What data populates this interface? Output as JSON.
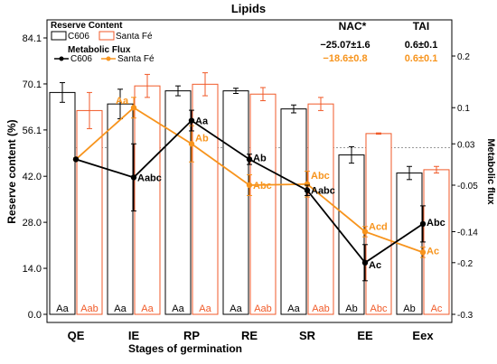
{
  "chart_data": {
    "type": "bar",
    "title": "Lipids",
    "xlabel": "Stages of germination",
    "ylabel": "Reserve content (%)",
    "y2label": "Metabolic flux",
    "categories": [
      "QE",
      "IE",
      "RP",
      "RE",
      "SR",
      "EE",
      "Eex"
    ],
    "ylim": [
      0,
      84.1
    ],
    "yticks": [
      "0.0",
      "14.0",
      "28.0",
      "42.0",
      "56.1",
      "70.1",
      "84.1"
    ],
    "y2lim": [
      -0.3,
      0.235
    ],
    "y2ticks": [
      "-0.3",
      "-0.2",
      "-0.14",
      "-0.05",
      "0.03",
      "0.1",
      "0.2"
    ],
    "reference_line": 50.7,
    "bar_series": [
      {
        "name": "C606",
        "color": "#000000",
        "values": [
          67.5,
          64.0,
          68.0,
          68.0,
          62.5,
          48.5,
          43.0
        ],
        "errors": [
          3.0,
          4.5,
          1.5,
          0.8,
          1.2,
          2.5,
          2.0
        ],
        "labels": [
          "Aa",
          "Aa",
          "Aa",
          "Aa",
          "Aa",
          "Ab",
          "Ab"
        ]
      },
      {
        "name": "Santa Fé",
        "color": "#f05a28",
        "values": [
          62.0,
          69.5,
          70.0,
          67.0,
          64.0,
          55.0,
          44.0
        ],
        "errors": [
          5.5,
          3.5,
          3.5,
          2.0,
          2.0,
          0.2,
          1.0
        ],
        "labels": [
          "Aab",
          "Aa",
          "Aa",
          "Aab",
          "Aab",
          "Abc",
          "Ac"
        ]
      }
    ],
    "line_series": [
      {
        "name": "C606",
        "color": "#000000",
        "values": [
          0.0,
          -0.035,
          0.075,
          0.0,
          -0.06,
          -0.2,
          -0.125
        ],
        "errors": [
          0.0,
          0.065,
          0.02,
          0.01,
          0.01,
          0.035,
          0.035
        ],
        "labels": [
          "",
          "Aabc",
          "Aa",
          "Ab",
          "Aabc",
          "Ac",
          "Abc"
        ]
      },
      {
        "name": "Santa Fé",
        "color": "#f7941d",
        "values": [
          0.0,
          0.1,
          0.03,
          -0.05,
          -0.048,
          -0.14,
          -0.18
        ],
        "errors": [
          0.0,
          0.02,
          0.035,
          0.02,
          0.025,
          0.01,
          0.01
        ],
        "labels": [
          "",
          "Aa",
          "Ab",
          "Abc",
          "Abc",
          "Acd",
          "Ac"
        ]
      }
    ],
    "legend_reserve_title": "Reserve Content",
    "legend_flux_title": "Metabolic Flux",
    "stats": {
      "headers": [
        "NAC*",
        "TAI"
      ],
      "rows": [
        {
          "color": "#000000",
          "nac": "−25.07±1.6",
          "tai": "0.6±0.1"
        },
        {
          "color": "#f7941d",
          "nac": "−18.6±0.8",
          "tai": "0.6±0.1"
        }
      ]
    }
  }
}
